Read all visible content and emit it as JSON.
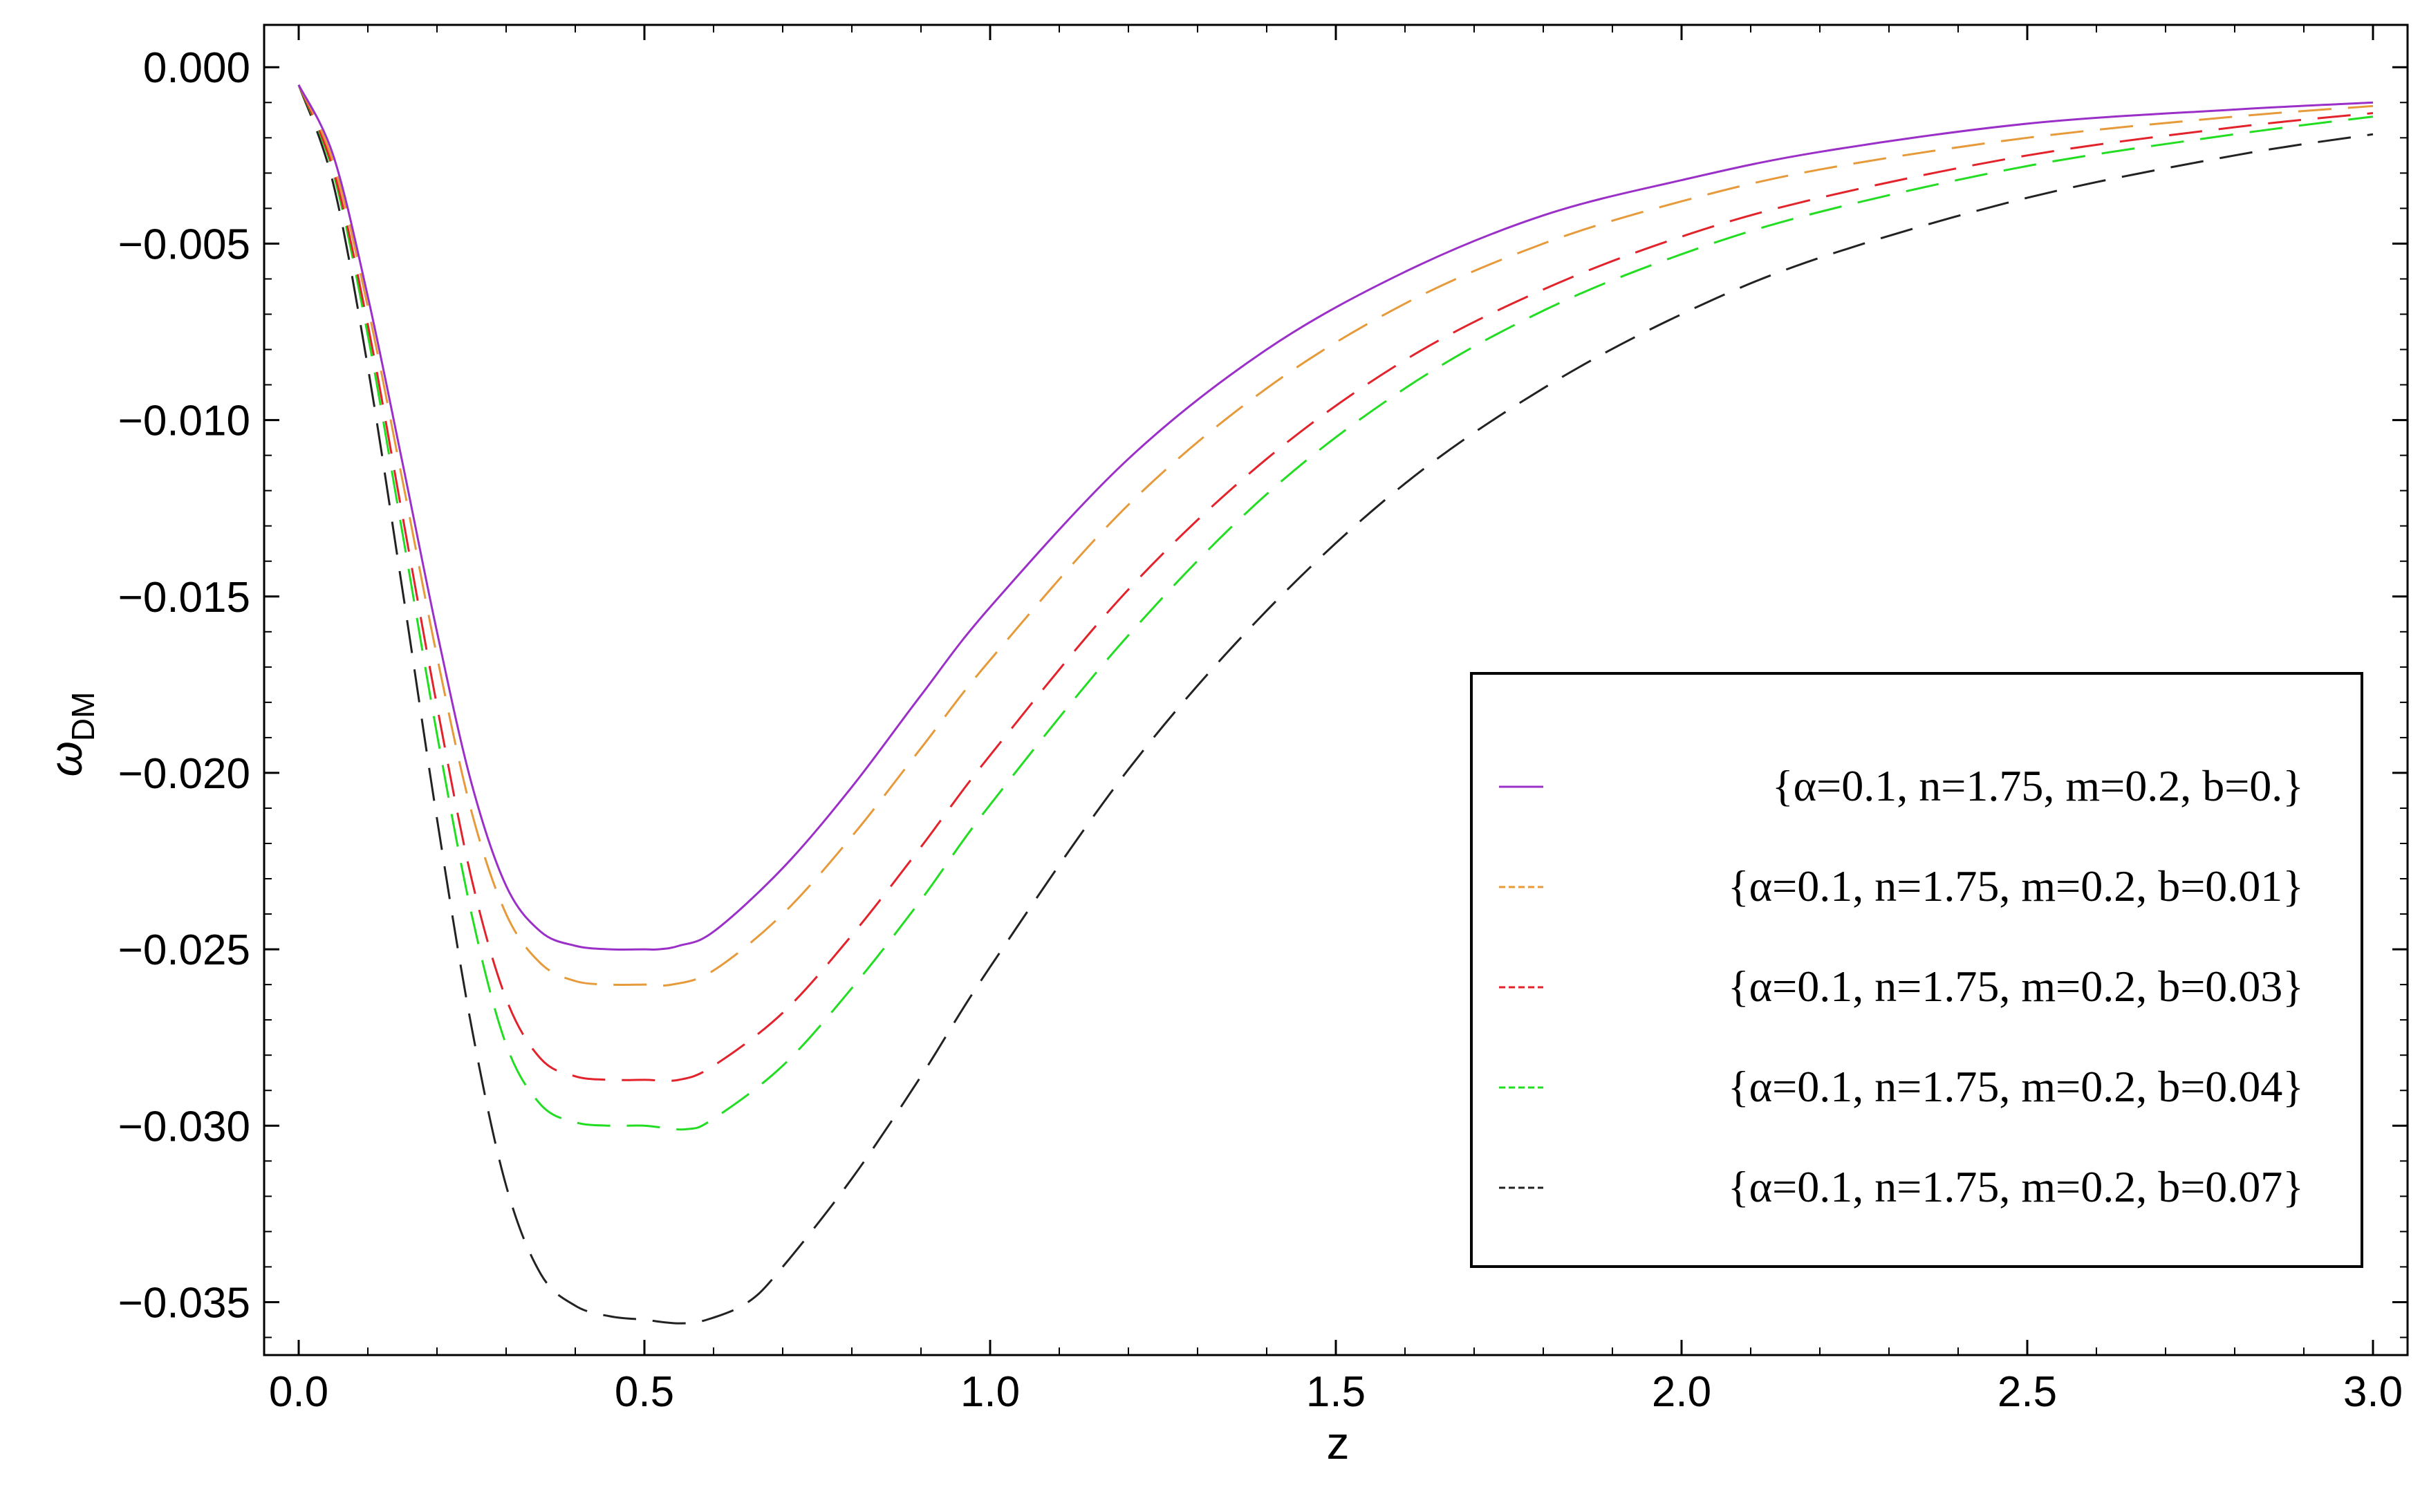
{
  "chart_data": {
    "type": "line",
    "title": "",
    "xlabel": "z",
    "ylabel": "ω_DM",
    "ylabel_symbol": "ω",
    "ylabel_subscript": "DM",
    "xlim": [
      -0.05,
      3.05
    ],
    "ylim": [
      -0.0365,
      0.0012
    ],
    "x_ticks": [
      0.0,
      0.5,
      1.0,
      1.5,
      2.0,
      2.5,
      3.0
    ],
    "x_tick_labels": [
      "0.0",
      "0.5",
      "1.0",
      "1.5",
      "2.0",
      "2.5",
      "3.0"
    ],
    "y_ticks": [
      0.0,
      -0.005,
      -0.01,
      -0.015,
      -0.02,
      -0.025,
      -0.03,
      -0.035
    ],
    "y_tick_labels": [
      "0.000",
      "−0.005",
      "−0.010",
      "−0.015",
      "−0.020",
      "−0.025",
      "−0.030",
      "−0.035"
    ],
    "grid": false,
    "legend_position": "bottom-right",
    "series": [
      {
        "name": "{α=0.1, n=1.75, m=0.2, b=0.}",
        "color": "#9b30c8",
        "style": "solid",
        "x": [
          0.0,
          0.05,
          0.1,
          0.15,
          0.2,
          0.25,
          0.3,
          0.35,
          0.4,
          0.45,
          0.5,
          0.52,
          0.55,
          0.6,
          0.7,
          0.8,
          0.9,
          1.0,
          1.2,
          1.4,
          1.6,
          1.8,
          2.0,
          2.2,
          2.5,
          2.8,
          3.0
        ],
        "y": [
          -0.0005,
          -0.0025,
          -0.0065,
          -0.0112,
          -0.016,
          -0.0203,
          -0.0232,
          -0.0245,
          -0.0249,
          -0.025,
          -0.025,
          -0.025,
          -0.0249,
          -0.0245,
          -0.0227,
          -0.0204,
          -0.0178,
          -0.0153,
          -0.0111,
          -0.008,
          -0.0058,
          -0.0042,
          -0.0032,
          -0.0024,
          -0.0016,
          -0.0012,
          -0.001
        ]
      },
      {
        "name": "{α=0.1, n=1.75, m=0.2, b=0.01}",
        "color": "#e69a3a",
        "style": "dashed",
        "x": [
          0.0,
          0.05,
          0.1,
          0.15,
          0.2,
          0.25,
          0.3,
          0.35,
          0.4,
          0.45,
          0.5,
          0.54,
          0.6,
          0.7,
          0.8,
          0.9,
          1.0,
          1.2,
          1.4,
          1.6,
          1.8,
          2.0,
          2.2,
          2.5,
          2.8,
          3.0
        ],
        "y": [
          -0.0005,
          -0.0027,
          -0.0068,
          -0.0117,
          -0.0167,
          -0.0211,
          -0.024,
          -0.0254,
          -0.0259,
          -0.026,
          -0.026,
          -0.026,
          -0.0256,
          -0.024,
          -0.0218,
          -0.0193,
          -0.0168,
          -0.0124,
          -0.0091,
          -0.0067,
          -0.005,
          -0.0038,
          -0.0029,
          -0.002,
          -0.0014,
          -0.0011
        ]
      },
      {
        "name": "{α=0.1, n=1.75, m=0.2, b=0.03}",
        "color": "#e2232b",
        "style": "dashed",
        "x": [
          0.0,
          0.05,
          0.1,
          0.15,
          0.2,
          0.25,
          0.3,
          0.35,
          0.4,
          0.45,
          0.5,
          0.55,
          0.6,
          0.7,
          0.8,
          0.9,
          1.0,
          1.2,
          1.4,
          1.6,
          1.8,
          2.0,
          2.2,
          2.5,
          2.8,
          3.0
        ],
        "y": [
          -0.0005,
          -0.0029,
          -0.0073,
          -0.0127,
          -0.0181,
          -0.023,
          -0.0264,
          -0.0281,
          -0.0286,
          -0.0287,
          -0.0287,
          -0.0287,
          -0.0283,
          -0.0268,
          -0.0246,
          -0.0221,
          -0.0195,
          -0.0148,
          -0.0111,
          -0.0083,
          -0.0063,
          -0.0048,
          -0.0037,
          -0.0025,
          -0.0017,
          -0.0013
        ]
      },
      {
        "name": "{α=0.1, n=1.75, m=0.2, b=0.04}",
        "color": "#22dd22",
        "style": "dashed",
        "x": [
          0.0,
          0.05,
          0.1,
          0.15,
          0.2,
          0.25,
          0.3,
          0.35,
          0.4,
          0.45,
          0.5,
          0.56,
          0.6,
          0.7,
          0.8,
          0.9,
          1.0,
          1.2,
          1.4,
          1.6,
          1.8,
          2.0,
          2.2,
          2.5,
          2.8,
          3.0
        ],
        "y": [
          -0.0005,
          -0.003,
          -0.0076,
          -0.0132,
          -0.0189,
          -0.024,
          -0.0277,
          -0.0294,
          -0.0299,
          -0.03,
          -0.03,
          -0.0301,
          -0.0298,
          -0.0283,
          -0.0261,
          -0.0236,
          -0.0209,
          -0.0161,
          -0.0121,
          -0.0091,
          -0.0069,
          -0.0053,
          -0.0041,
          -0.0028,
          -0.0019,
          -0.0014
        ]
      },
      {
        "name": "{α=0.1, n=1.75, m=0.2, b=0.07}",
        "color": "#222222",
        "style": "dashed",
        "x": [
          0.0,
          0.05,
          0.1,
          0.15,
          0.2,
          0.25,
          0.3,
          0.35,
          0.4,
          0.45,
          0.5,
          0.55,
          0.59,
          0.65,
          0.7,
          0.8,
          0.9,
          1.0,
          1.2,
          1.4,
          1.6,
          1.8,
          2.0,
          2.2,
          2.5,
          2.8,
          3.0
        ],
        "y": [
          -0.0005,
          -0.0033,
          -0.0085,
          -0.0148,
          -0.0213,
          -0.0272,
          -0.0317,
          -0.0342,
          -0.0351,
          -0.0354,
          -0.0355,
          -0.0356,
          -0.0355,
          -0.035,
          -0.034,
          -0.0315,
          -0.0286,
          -0.0255,
          -0.0199,
          -0.0154,
          -0.0118,
          -0.0091,
          -0.007,
          -0.0054,
          -0.0037,
          -0.0025,
          -0.0019
        ]
      }
    ]
  }
}
